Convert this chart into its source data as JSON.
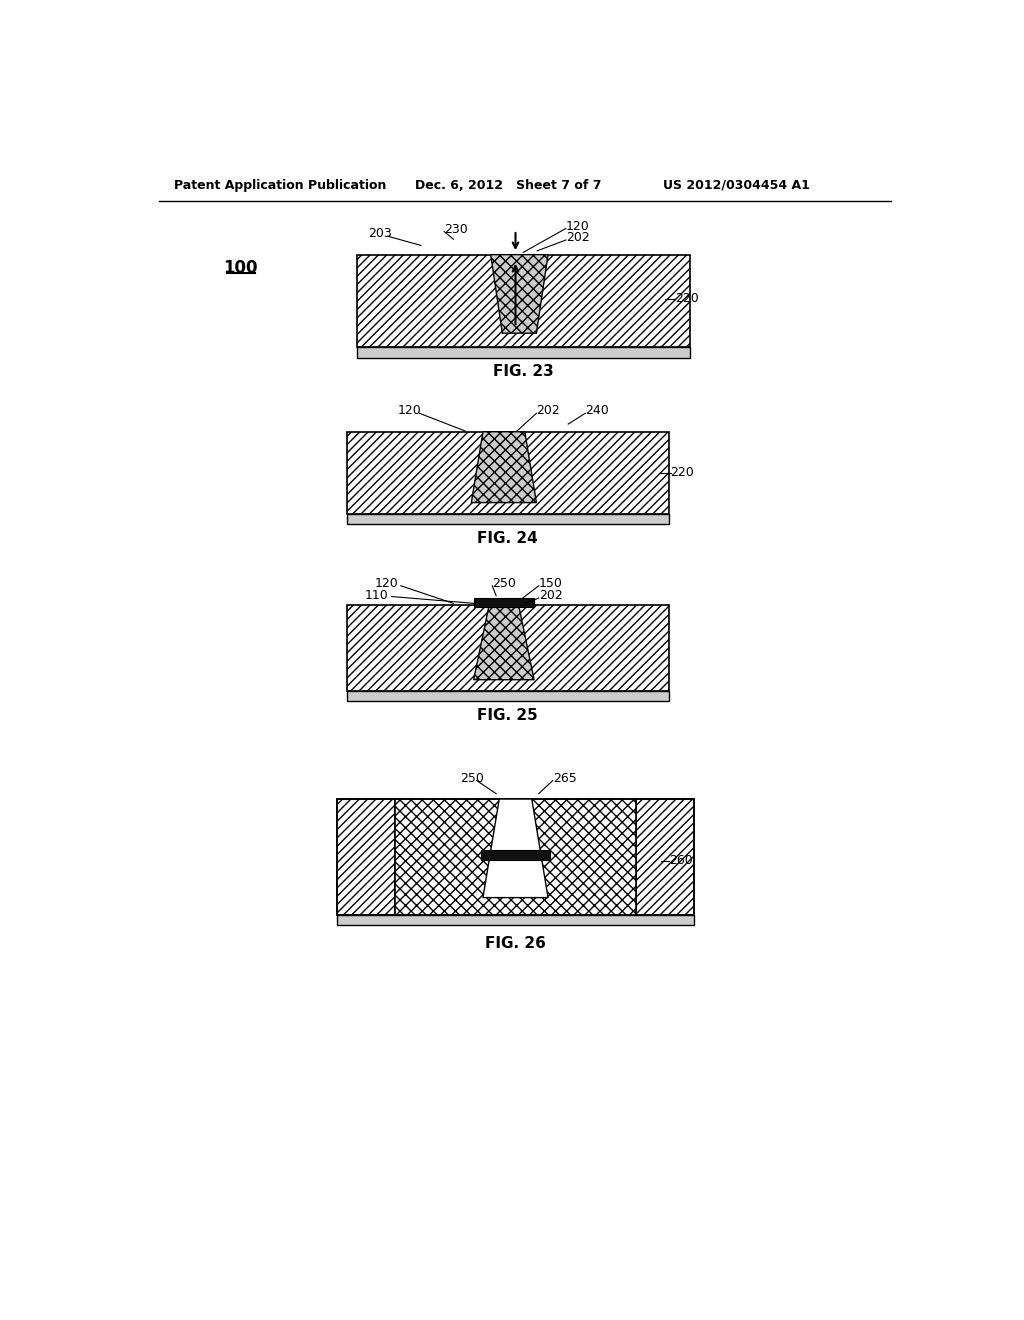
{
  "header_left": "Patent Application Publication",
  "header_center": "Dec. 6, 2012   Sheet 7 of 7",
  "header_right": "US 2012/0304454 A1",
  "fig23_label": "FIG. 23",
  "fig24_label": "FIG. 24",
  "fig25_label": "FIG. 25",
  "fig26_label": "FIG. 26",
  "background_color": "#ffffff"
}
